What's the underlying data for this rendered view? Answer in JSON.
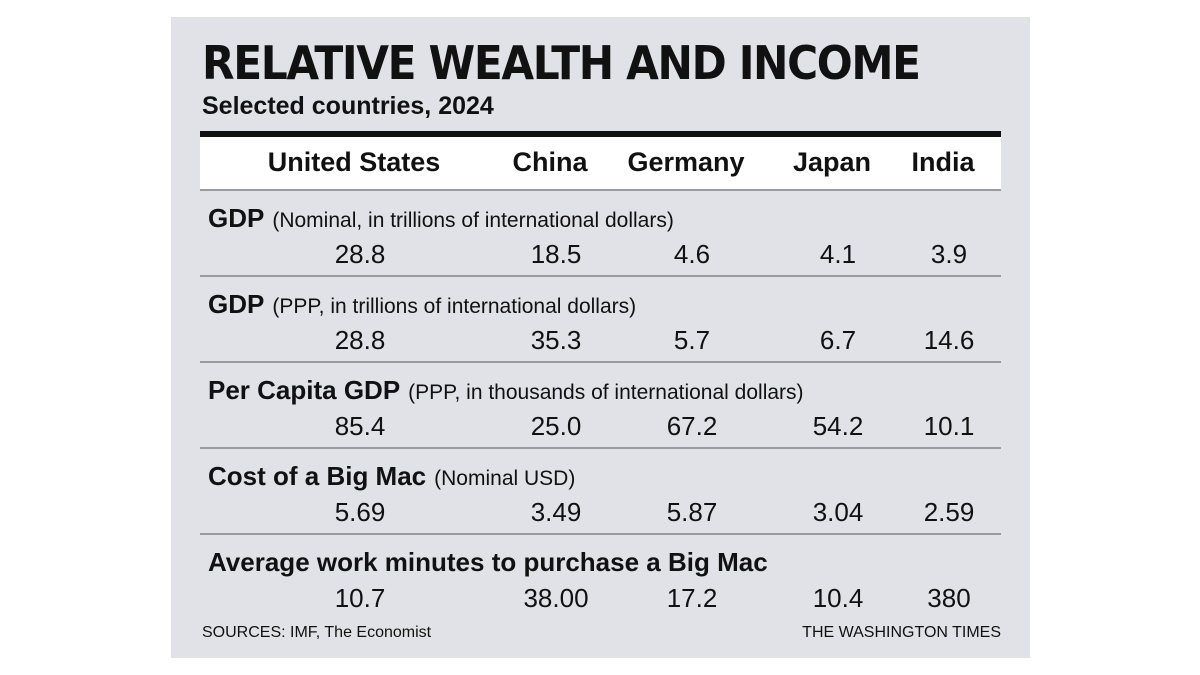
{
  "chart_data": {
    "type": "table",
    "title": "RELATIVE WEALTH AND INCOME",
    "subtitle": "Selected countries, 2024",
    "columns": [
      "United States",
      "China",
      "Germany",
      "Japan",
      "India"
    ],
    "rows": [
      {
        "label": "GDP",
        "note": "(Nominal, in trillions of international dollars)",
        "values": [
          "28.8",
          "18.5",
          "4.6",
          "4.1",
          "3.9"
        ]
      },
      {
        "label": "GDP",
        "note": "(PPP, in trillions of international dollars)",
        "values": [
          "28.8",
          "35.3",
          "5.7",
          "6.7",
          "14.6"
        ]
      },
      {
        "label": "Per Capita GDP",
        "note": "(PPP, in thousands of international dollars)",
        "values": [
          "85.4",
          "25.0",
          "67.2",
          "54.2",
          "10.1"
        ]
      },
      {
        "label": "Cost of a Big Mac",
        "note": "(Nominal USD)",
        "values": [
          "5.69",
          "3.49",
          "5.87",
          "3.04",
          "2.59"
        ]
      },
      {
        "label": "Average work minutes to purchase a Big Mac",
        "note": "",
        "values": [
          "10.7",
          "38.00",
          "17.2",
          "10.4",
          "380"
        ]
      }
    ],
    "source": "SOURCES: IMF, The Economist",
    "credit": "THE WASHINGTON TIMES",
    "colors": {
      "panel_background": "#e1e1e8",
      "header_band": "#ffffff",
      "rule": "#111111",
      "divider": "#9a9aa2"
    }
  }
}
